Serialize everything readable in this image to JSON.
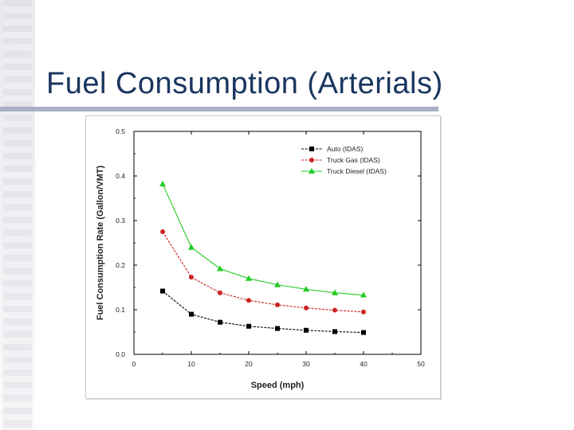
{
  "slide": {
    "title": "Fuel Consumption (Arterials)"
  },
  "chart_data": {
    "type": "line",
    "x": [
      5,
      10,
      15,
      20,
      25,
      30,
      35,
      40
    ],
    "series": [
      {
        "name": "Auto (IDAS)",
        "color": "#000000",
        "marker": "square",
        "dash": true,
        "values": [
          0.142,
          0.09,
          0.072,
          0.063,
          0.058,
          0.054,
          0.051,
          0.049
        ]
      },
      {
        "name": "Truck Gas (IDAS)",
        "color": "#cc2222",
        "marker": "circle",
        "dash": true,
        "values": [
          0.275,
          0.173,
          0.138,
          0.121,
          0.111,
          0.104,
          0.099,
          0.095
        ]
      },
      {
        "name": "Truck Diesel (IDAS)",
        "color": "#22cc22",
        "marker": "triangle",
        "dash": false,
        "values": [
          0.382,
          0.24,
          0.192,
          0.17,
          0.156,
          0.146,
          0.138,
          0.133
        ]
      }
    ],
    "xlabel": "Speed (mph)",
    "ylabel": "Fuel Consumption Rate (Gallon/VMT)",
    "xlim": [
      0,
      50
    ],
    "ylim": [
      0.0,
      0.5
    ],
    "xticks": [
      "0",
      "10",
      "20",
      "30",
      "40",
      "50"
    ],
    "yticks": [
      "0.0",
      "0.1",
      "0.2",
      "0.3",
      "0.4",
      "0.5"
    ],
    "grid": false,
    "legend_position": "top-right"
  }
}
